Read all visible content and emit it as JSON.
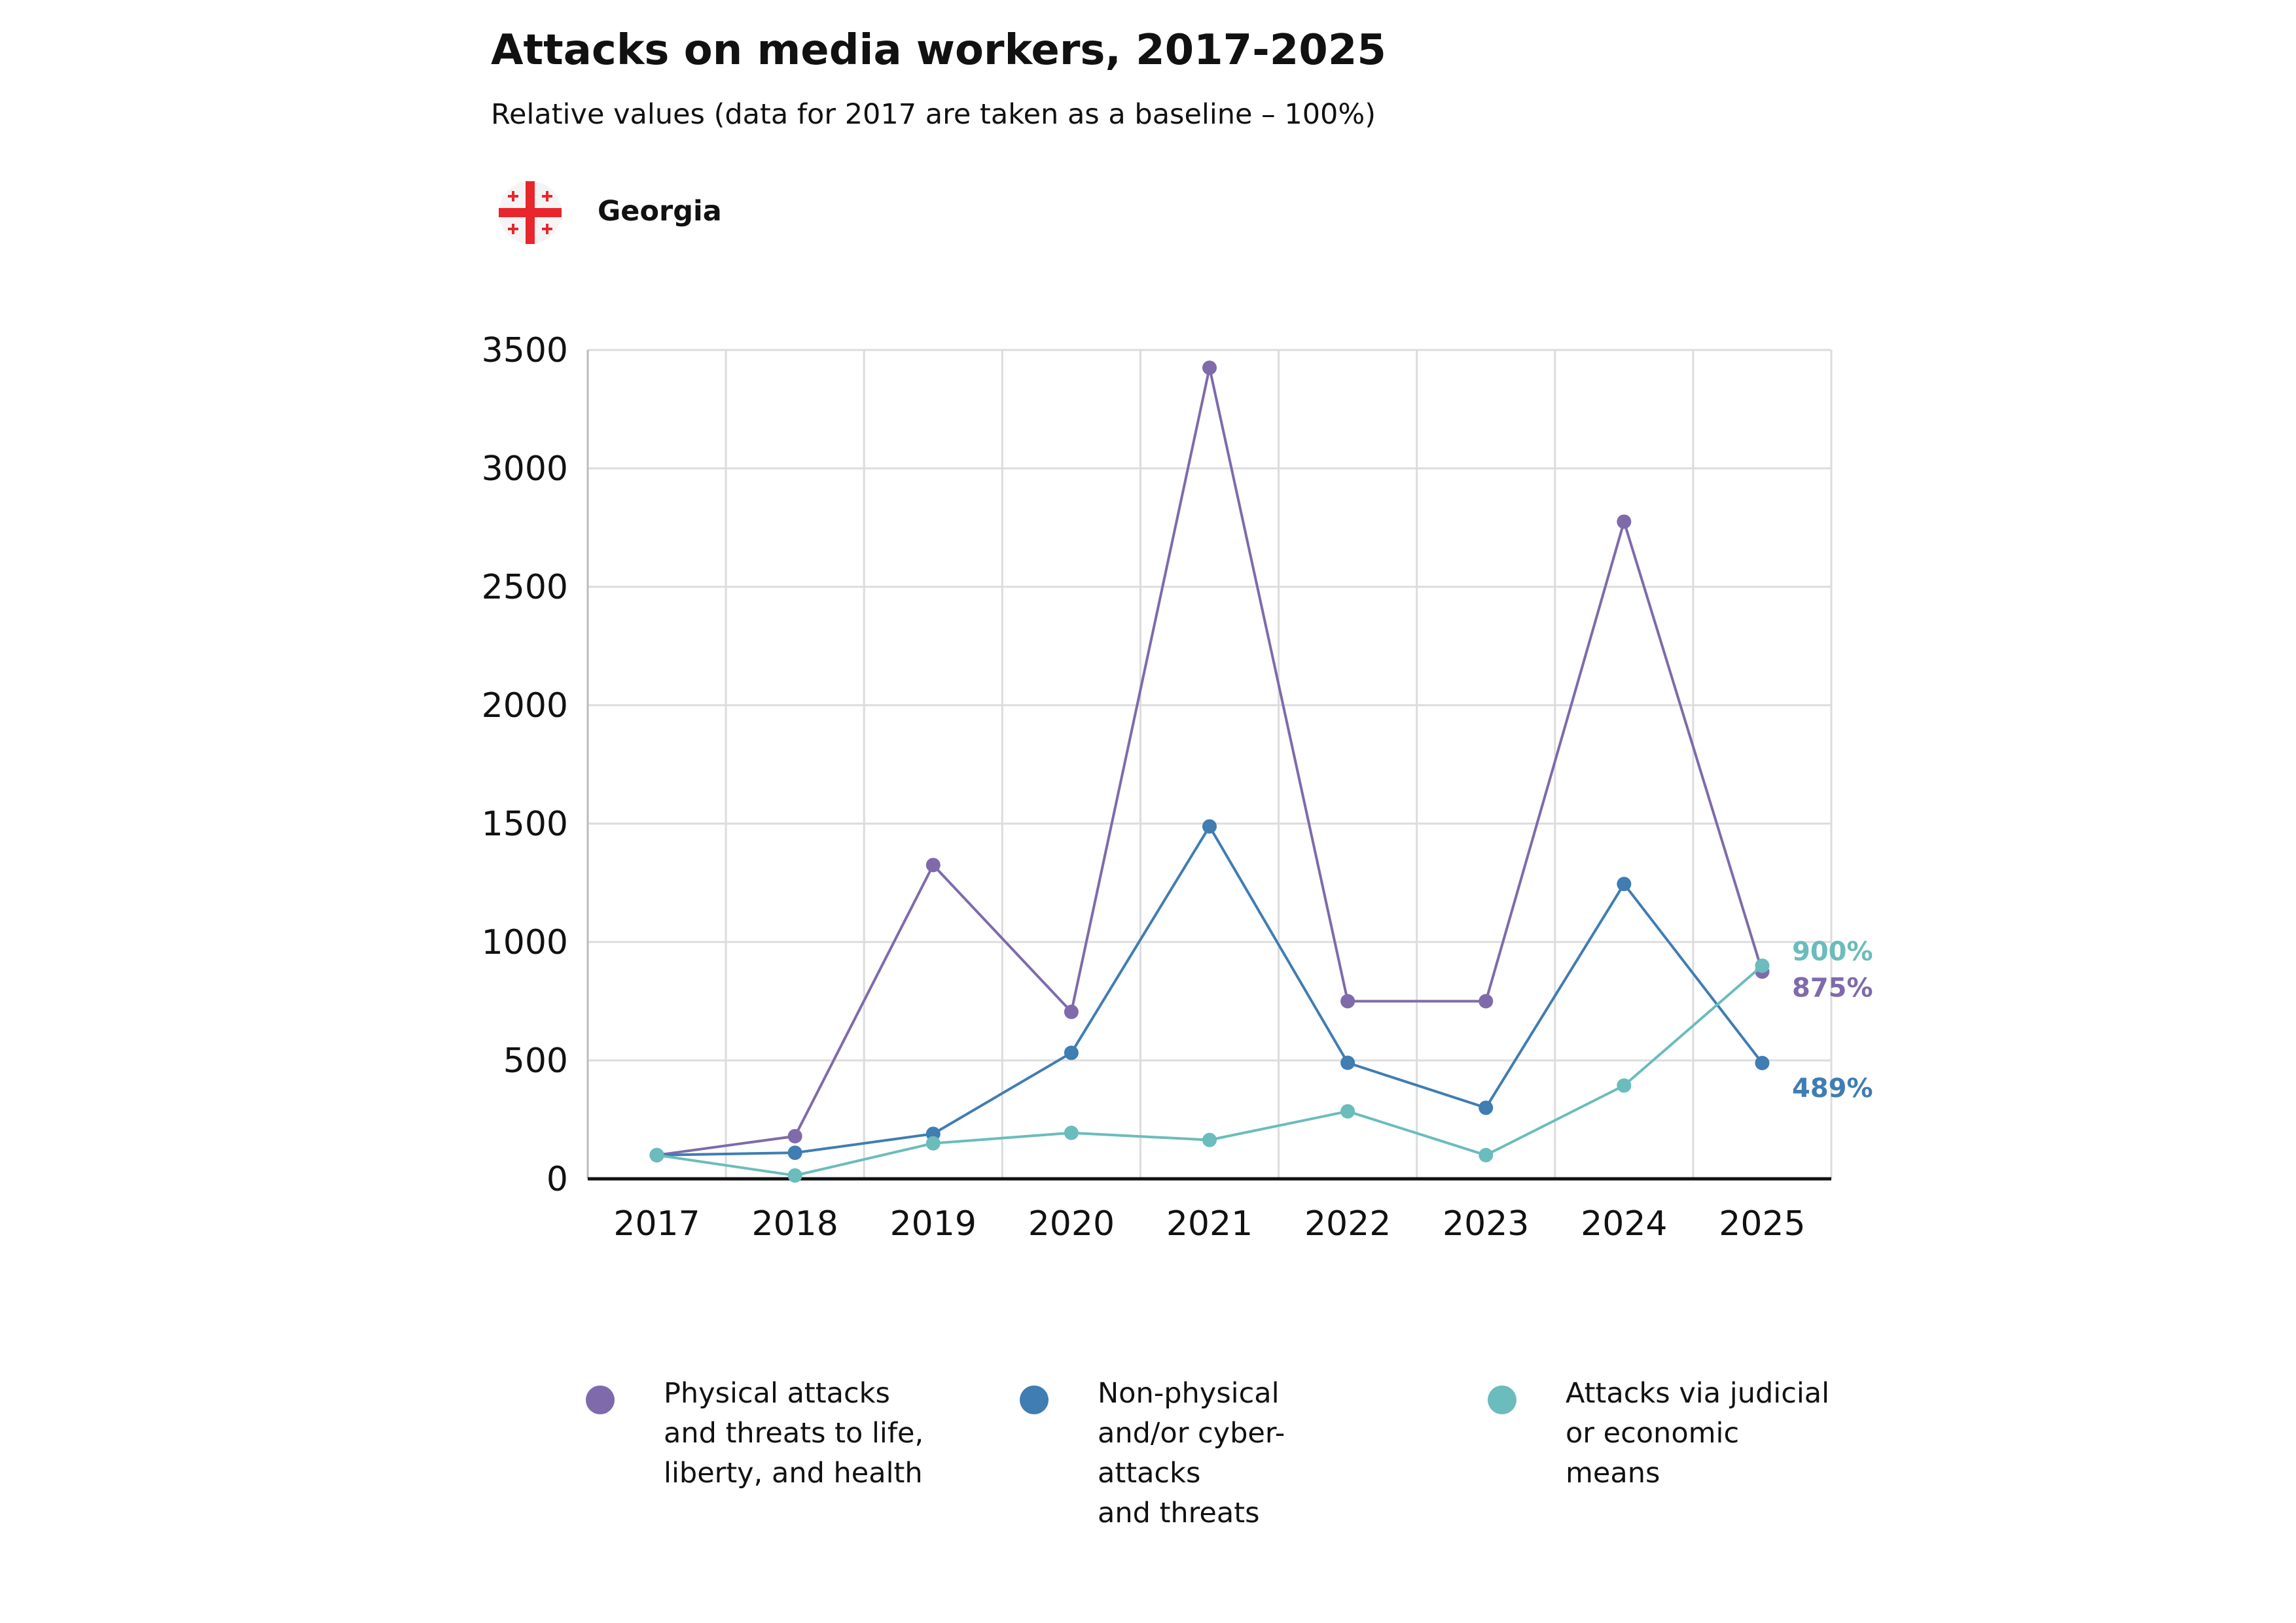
{
  "title": "Attacks on media workers, 2017-2025",
  "subtitle": "Relative values (data for 2017 are taken as a baseline – 100%)",
  "country": "Georgia",
  "chart_data": {
    "type": "line",
    "title": "Attacks on media workers, 2017-2025",
    "subtitle": "Relative values (data for 2017 are taken as a baseline – 100%)",
    "xlabel": "",
    "ylabel": "",
    "categories": [
      "2017",
      "2018",
      "2019",
      "2020",
      "2021",
      "2022",
      "2023",
      "2024",
      "2025"
    ],
    "ylim": [
      0,
      3500
    ],
    "yticks": [
      0,
      500,
      1000,
      1500,
      2000,
      2500,
      3000,
      3500
    ],
    "grid": true,
    "legend_position": "bottom",
    "series": [
      {
        "name": "Physical attacks\nand threats to life,\nliberty, and health",
        "color": "#7f6aab",
        "values": [
          100,
          180,
          1325,
          705,
          3425,
          750,
          750,
          2775,
          875
        ],
        "end_label": "875%"
      },
      {
        "name": "Non-physical\nand/or cyber-attacks\nand threats",
        "color": "#3f7db3",
        "values": [
          100,
          110,
          190,
          532,
          1488,
          490,
          300,
          1245,
          489
        ],
        "end_label": "489%"
      },
      {
        "name": "Attacks via judicial\nor economic\nmeans",
        "color": "#6bbcbc",
        "values": [
          100,
          14,
          150,
          194,
          164,
          285,
          100,
          394,
          900
        ],
        "end_label": "900%"
      }
    ]
  }
}
